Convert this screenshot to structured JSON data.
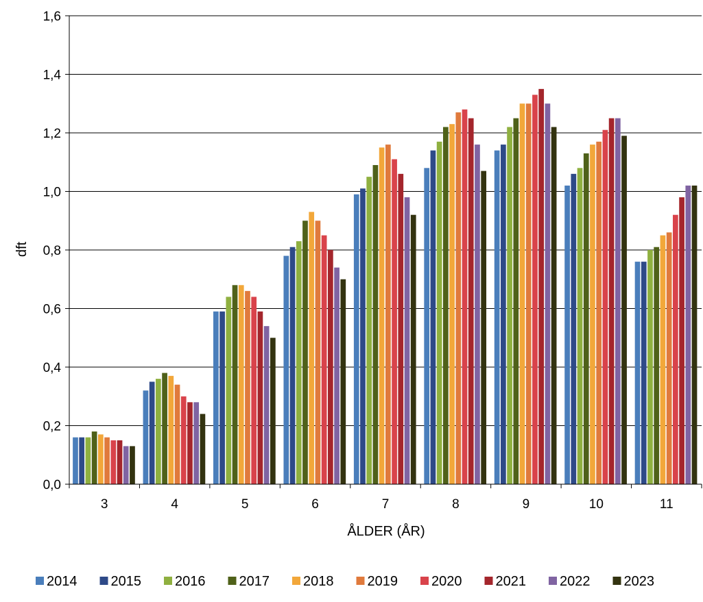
{
  "chart_data": {
    "type": "bar",
    "title": "",
    "xlabel": "ÅLDER (ÅR)",
    "ylabel": "dft",
    "ylim": [
      0,
      1.6
    ],
    "yticks": [
      "0,0",
      "0,2",
      "0,4",
      "0,6",
      "0,8",
      "1,0",
      "1,2",
      "1,4",
      "1,6"
    ],
    "ytick_values": [
      0,
      0.2,
      0.4,
      0.6,
      0.8,
      1.0,
      1.2,
      1.4,
      1.6
    ],
    "grid": "horizontal",
    "legend_position": "bottom",
    "categories": [
      "3",
      "4",
      "5",
      "6",
      "7",
      "8",
      "9",
      "10",
      "11"
    ],
    "series": [
      {
        "name": "2014",
        "color": "#4a7ebb",
        "values": [
          0.16,
          0.32,
          0.59,
          0.78,
          0.99,
          1.08,
          1.14,
          1.02,
          0.76
        ]
      },
      {
        "name": "2015",
        "color": "#2e4a88",
        "values": [
          0.16,
          0.35,
          0.59,
          0.81,
          1.01,
          1.14,
          1.16,
          1.06,
          0.76
        ]
      },
      {
        "name": "2016",
        "color": "#8fb040",
        "values": [
          0.16,
          0.36,
          0.64,
          0.83,
          1.05,
          1.17,
          1.22,
          1.08,
          0.8
        ]
      },
      {
        "name": "2017",
        "color": "#4f6119",
        "values": [
          0.18,
          0.38,
          0.68,
          0.9,
          1.09,
          1.22,
          1.25,
          1.13,
          0.81
        ]
      },
      {
        "name": "2018",
        "color": "#f2a73a",
        "values": [
          0.17,
          0.37,
          0.68,
          0.93,
          1.15,
          1.23,
          1.3,
          1.16,
          0.85
        ]
      },
      {
        "name": "2019",
        "color": "#e07a3c",
        "values": [
          0.16,
          0.34,
          0.66,
          0.9,
          1.16,
          1.27,
          1.3,
          1.17,
          0.86
        ]
      },
      {
        "name": "2020",
        "color": "#d9434b",
        "values": [
          0.15,
          0.3,
          0.64,
          0.85,
          1.11,
          1.28,
          1.33,
          1.21,
          0.92
        ]
      },
      {
        "name": "2021",
        "color": "#a4262c",
        "values": [
          0.15,
          0.28,
          0.59,
          0.8,
          1.06,
          1.25,
          1.35,
          1.25,
          0.98
        ]
      },
      {
        "name": "2022",
        "color": "#8064a2",
        "values": [
          0.13,
          0.28,
          0.54,
          0.74,
          0.98,
          1.16,
          1.3,
          1.25,
          1.02
        ]
      },
      {
        "name": "2023",
        "color": "#333310",
        "values": [
          0.13,
          0.24,
          0.5,
          0.7,
          0.92,
          1.07,
          1.22,
          1.19,
          1.02
        ]
      }
    ]
  }
}
